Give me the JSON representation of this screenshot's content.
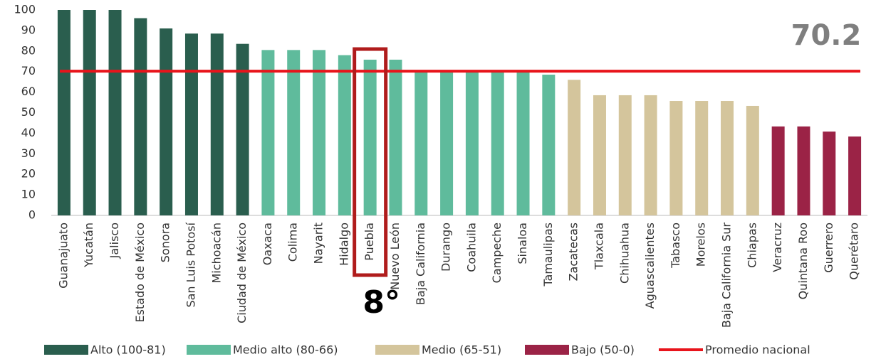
{
  "chart_data": {
    "type": "bar",
    "categories": [
      "Guanajuato",
      "Yucatán",
      "Jalisco",
      "Estado de México",
      "Sonora",
      "San Luis Potosí",
      "Michoacán",
      "Ciudad de México",
      "Oaxaca",
      "Colima",
      "Nayarit",
      "Hidalgo",
      "Puebla",
      "Nuevo León",
      "Baja California",
      "Durango",
      "Coahuila",
      "Campeche",
      "Sinaloa",
      "Tamaulipas",
      "Zacatecas",
      "Tlaxcala",
      "Chihuahua",
      "Aguascalientes",
      "Tabasco",
      "Morelos",
      "Baja California Sur",
      "Chiapas",
      "Veracruz",
      "Quintana Roo",
      "Guerrero",
      "Querétaro"
    ],
    "values": [
      100,
      100,
      100,
      96,
      91,
      88.5,
      88.5,
      83.5,
      80.5,
      80.5,
      80.5,
      78,
      75.8,
      75.8,
      70,
      70,
      70,
      70,
      70,
      68.5,
      66,
      58.5,
      58.5,
      58.5,
      55.7,
      55.7,
      55.7,
      53.3,
      43.3,
      43.3,
      40.8,
      38.4
    ],
    "colors": [
      "#2a5e4e",
      "#2a5e4e",
      "#2a5e4e",
      "#2a5e4e",
      "#2a5e4e",
      "#2a5e4e",
      "#2a5e4e",
      "#2a5e4e",
      "#5fbb9c",
      "#5fbb9c",
      "#5fbb9c",
      "#5fbb9c",
      "#5fbb9c",
      "#5fbb9c",
      "#5fbb9c",
      "#5fbb9c",
      "#5fbb9c",
      "#5fbb9c",
      "#5fbb9c",
      "#5fbb9c",
      "#d4c59c",
      "#d4c59c",
      "#d4c59c",
      "#d4c59c",
      "#d4c59c",
      "#d4c59c",
      "#d4c59c",
      "#d4c59c",
      "#9b2346",
      "#9b2346",
      "#9b2346",
      "#9b2346"
    ],
    "ylim": [
      0,
      100
    ],
    "yticks": [
      0,
      10,
      20,
      30,
      40,
      50,
      60,
      70,
      80,
      90,
      100
    ],
    "grid": false,
    "legend_position": "bottom",
    "legend": [
      {
        "label": "Alto (100-81)",
        "color": "#2a5e4e"
      },
      {
        "label": "Medio alto (80-66)",
        "color": "#5fbb9c"
      },
      {
        "label": "Medio (65-51)",
        "color": "#d4c59c"
      },
      {
        "label": "Bajo (50-0)",
        "color": "#9b2346"
      }
    ],
    "reference_line": {
      "value": 70.2,
      "label": "Promedio nacional",
      "color": "#e8141b"
    },
    "annotations": [
      {
        "text": "8°",
        "category": "Puebla",
        "color": "#b01c1c"
      }
    ]
  }
}
